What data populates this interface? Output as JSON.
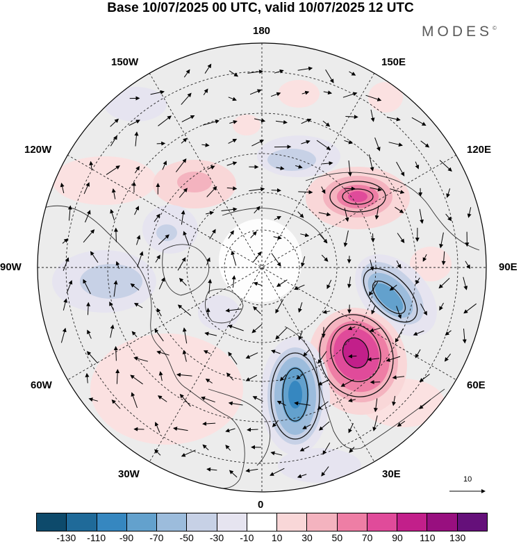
{
  "title": "Base 10/07/2025 00 UTC, valid 10/07/2025 12 UTC",
  "brand": "MODES",
  "brand_mark": "©",
  "longitude_labels": {
    "top": "180",
    "bottom": "0",
    "left": "90W",
    "right": "90E",
    "upper_left_1": "150W",
    "upper_left_2": "120W",
    "upper_right_1": "150E",
    "upper_right_2": "120E",
    "lower_left_1": "60W",
    "lower_left_2": "30W",
    "lower_right_1": "60E",
    "lower_right_2": "30E"
  },
  "reference_vector": {
    "label": "10"
  },
  "colorbar": {
    "colors": [
      "#0d4a6b",
      "#1f6a99",
      "#3687c0",
      "#63a1cd",
      "#9cbcdc",
      "#c7d1e6",
      "#e6e4f0",
      "#ffffff",
      "#f9d7d8",
      "#f4b3bf",
      "#ee7ea5",
      "#e04b9a",
      "#c21f8a",
      "#980f7f",
      "#65107a"
    ],
    "tick_labels": [
      "-130",
      "-110",
      "-90",
      "-70",
      "-50",
      "-30",
      "-10",
      "10",
      "30",
      "50",
      "70",
      "90",
      "110",
      "130"
    ]
  },
  "colors": {
    "background_shade": "#ececec",
    "grid": "#222222",
    "coast": "#333333"
  }
}
